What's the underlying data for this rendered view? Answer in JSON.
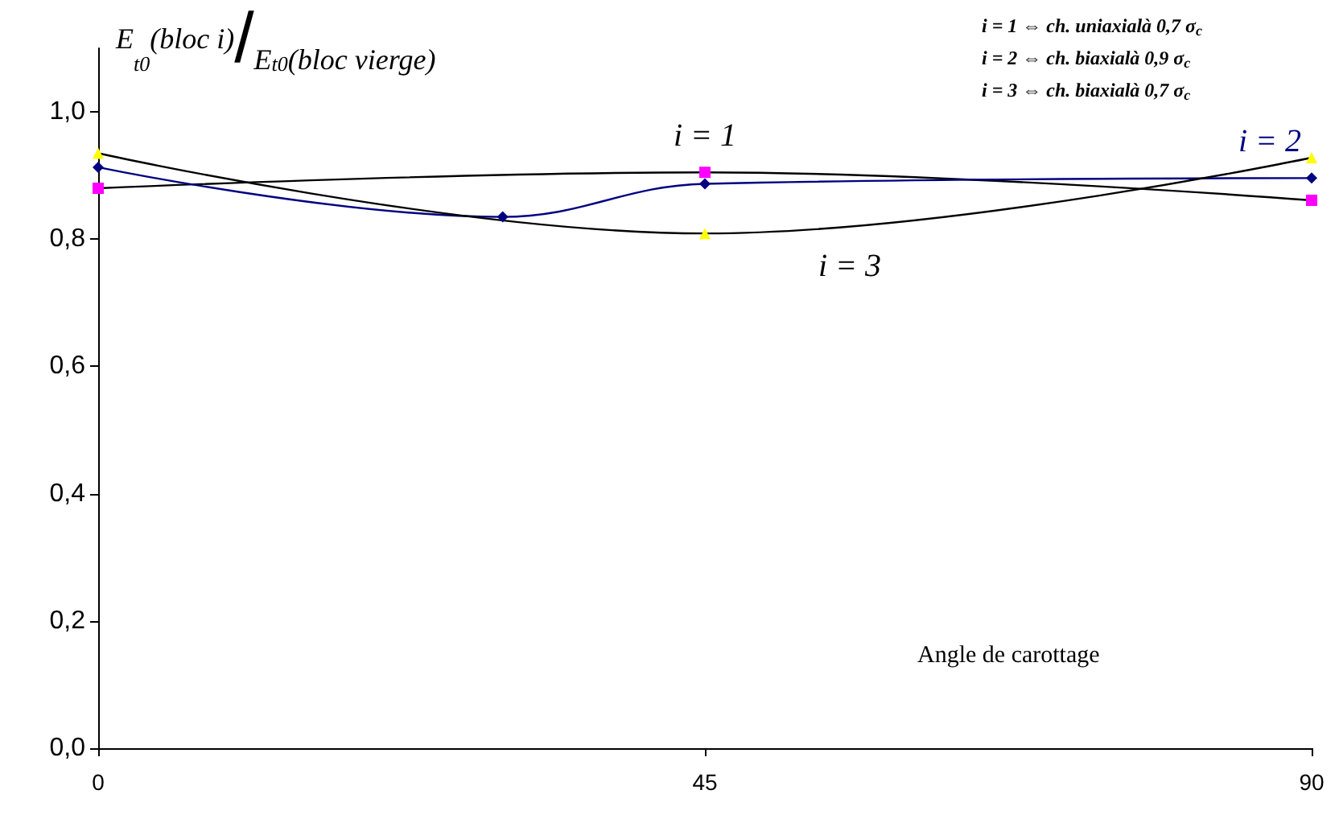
{
  "chart_data": {
    "type": "line",
    "ylabel": "E$_{t0}$(bloc i)/E$_{t0}$(bloc vierge)",
    "xlabel": "Angle de carottage",
    "x": [
      0,
      45,
      90
    ],
    "series": [
      {
        "name": "i = 1",
        "color": "#000000",
        "colors": [
          "#ff00ff",
          "#ff00ff",
          "#ff00ff"
        ],
        "marker": "square",
        "values": [
          0.88,
          0.905,
          0.861
        ]
      },
      {
        "name": "i = 2",
        "color": "#000080",
        "x": [
          0,
          30,
          45,
          90
        ],
        "marker": "diamond",
        "values": [
          0.913,
          0.835,
          0.887,
          0.896
        ]
      },
      {
        "name": "i = 3",
        "color": "#000000",
        "colors": [
          "#ffff00",
          "#ffff00",
          "#ffff00"
        ],
        "marker": "triangle",
        "values": [
          0.935,
          0.809,
          0.928
        ]
      }
    ],
    "annotations": [
      "i = 1 ⇔ ch. uniaxialà 0,7 σ$_{c}$",
      "i = 2 ⇔ ch. biaxialà 0,9 σ$_{c}$",
      "i = 3 ⇔ ch. biaxialà 0,7 σ$_{c}$"
    ],
    "xlim": [
      0,
      90
    ],
    "xticks": [
      0,
      45,
      90
    ],
    "ylim": [
      0,
      1.1
    ],
    "yticks": [
      {
        "value": 0,
        "label": "0,0"
      },
      {
        "value": 0.2,
        "label": "0,2"
      },
      {
        "value": 0.4,
        "label": "0,4"
      },
      {
        "value": 0.6,
        "label": "0,6"
      },
      {
        "value": 0.8,
        "label": "0,8"
      },
      {
        "value": 1,
        "label": "1,0"
      }
    ],
    "grid": false
  }
}
